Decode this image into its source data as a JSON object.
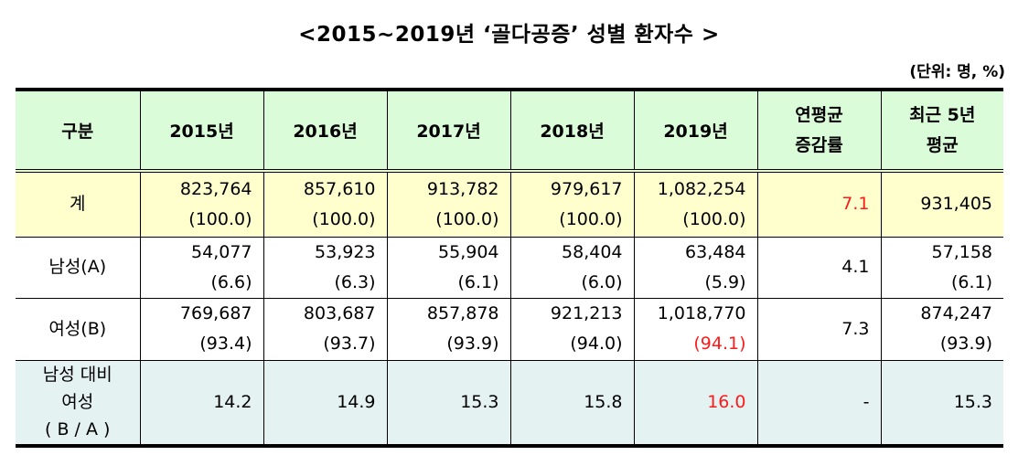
{
  "title": "<2015~2019년 ‘골다공증’ 성별 환자수 >",
  "unit": "(단위: 명, %)",
  "headers": [
    "구분",
    "2015년",
    "2016년",
    "2017년",
    "2018년",
    "2019년",
    "연평균\n증감률",
    "최근 5년\n평균"
  ],
  "header_lines": {
    "cagr1": "연평균",
    "cagr2": "증감률",
    "avg1": "최근 5년",
    "avg2": "평균"
  },
  "rows": {
    "total": {
      "label": "계",
      "counts": [
        "823,764",
        "857,610",
        "913,782",
        "979,617",
        "1,082,254"
      ],
      "pcts": [
        "(100.0)",
        "(100.0)",
        "(100.0)",
        "(100.0)",
        "(100.0)"
      ],
      "cagr": "7.1",
      "avg": "931,405",
      "avg_pct": ""
    },
    "male": {
      "label": "남성(A)",
      "counts": [
        "54,077",
        "53,923",
        "55,904",
        "58,404",
        "63,484"
      ],
      "pcts": [
        "(6.6)",
        "(6.3)",
        "(6.1)",
        "(6.0)",
        "(5.9)"
      ],
      "cagr": "4.1",
      "avg": "57,158",
      "avg_pct": "(6.1)"
    },
    "female": {
      "label": "여성(B)",
      "counts": [
        "769,687",
        "803,687",
        "857,878",
        "921,213",
        "1,018,770"
      ],
      "pcts": [
        "(93.4)",
        "(93.7)",
        "(93.9)",
        "(94.0)",
        "(94.1)"
      ],
      "cagr": "7.3",
      "avg": "874,247",
      "avg_pct": "(93.9)"
    },
    "ratio": {
      "label1": "남성 대비",
      "label2": "여성",
      "label3": "( B / A )",
      "values": [
        "14.2",
        "14.9",
        "15.3",
        "15.8",
        "16.0"
      ],
      "cagr": "-",
      "avg": "15.3"
    }
  },
  "colors": {
    "header_bg": "#dafcd8",
    "total_bg": "#ffffcd",
    "ratio_bg": "#e5f2f2",
    "highlight": "#ff1a1a"
  }
}
